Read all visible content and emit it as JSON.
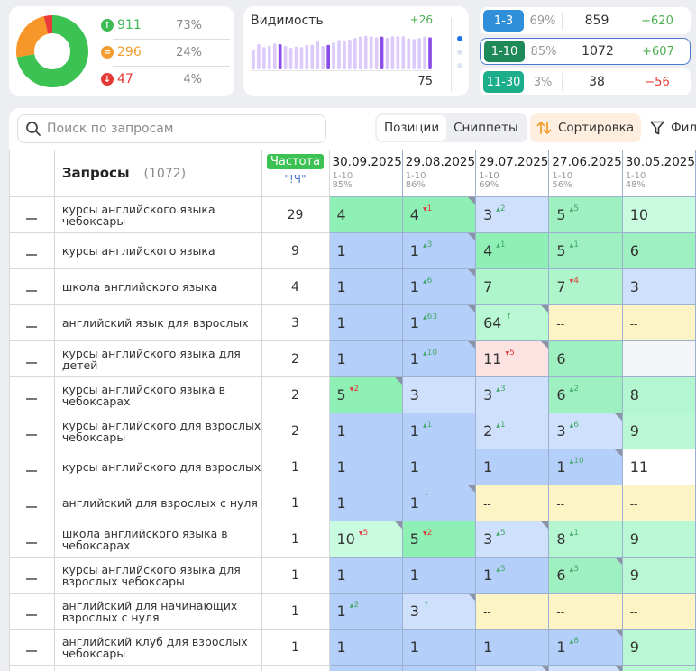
{
  "summary": {
    "up": {
      "count": "911",
      "pct": "73%",
      "color": "#3cba54"
    },
    "same": {
      "count": "296",
      "pct": "24%",
      "color": "#f39c2f"
    },
    "down": {
      "count": "47",
      "pct": "4%",
      "color": "#e53935"
    },
    "donut": [
      {
        "label": "up",
        "value": 73,
        "color": "#3cc153"
      },
      {
        "label": "same",
        "value": 24,
        "color": "#f7972a"
      },
      {
        "label": "down",
        "value": 4,
        "color": "#ec3b3b"
      }
    ]
  },
  "visibility": {
    "title": "Видимость",
    "delta": "+26",
    "value": "75",
    "bars": [
      {
        "v": 55,
        "h": false
      },
      {
        "v": 70,
        "h": false
      },
      {
        "v": 62,
        "h": false
      },
      {
        "v": 66,
        "h": false
      },
      {
        "v": 72,
        "h": false
      },
      {
        "v": 70,
        "h": true
      },
      {
        "v": 65,
        "h": false
      },
      {
        "v": 60,
        "h": false
      },
      {
        "v": 63,
        "h": false
      },
      {
        "v": 62,
        "h": false
      },
      {
        "v": 68,
        "h": false
      },
      {
        "v": 68,
        "h": false
      },
      {
        "v": 78,
        "h": false
      },
      {
        "v": 65,
        "h": false
      },
      {
        "v": 68,
        "h": true
      },
      {
        "v": 75,
        "h": false
      },
      {
        "v": 82,
        "h": false
      },
      {
        "v": 78,
        "h": false
      },
      {
        "v": 83,
        "h": false
      },
      {
        "v": 87,
        "h": false
      },
      {
        "v": 91,
        "h": false
      },
      {
        "v": 93,
        "h": false
      },
      {
        "v": 92,
        "h": false
      },
      {
        "v": 89,
        "h": false
      },
      {
        "v": 91,
        "h": true
      },
      {
        "v": 88,
        "h": false
      },
      {
        "v": 92,
        "h": false
      },
      {
        "v": 92,
        "h": false
      },
      {
        "v": 92,
        "h": false
      },
      {
        "v": 86,
        "h": false
      },
      {
        "v": 84,
        "h": false
      },
      {
        "v": 87,
        "h": false
      },
      {
        "v": 91,
        "h": false
      },
      {
        "v": 89,
        "h": true
      }
    ]
  },
  "ranges": [
    {
      "label": "1-3",
      "pct": "69%",
      "count": "859",
      "delta": "+620",
      "badge": "#2f8fd8",
      "positive": true
    },
    {
      "label": "1-10",
      "pct": "85%",
      "count": "1072",
      "delta": "+607",
      "badge": "#1e8a5a",
      "positive": true
    },
    {
      "label": "11-30",
      "pct": "3%",
      "count": "38",
      "delta": "−56",
      "badge": "#1cae8a",
      "positive": false
    }
  ],
  "toolbar": {
    "search_placeholder": "Поиск по запросам",
    "positions": "Позиции",
    "snippets": "Сниппеты",
    "sort": "Сортировка",
    "filter": "Фил"
  },
  "table": {
    "queries_title": "Запросы",
    "queries_count": "(1072)",
    "freq_label": "Частота",
    "freq_sub": "\"!Ч\"",
    "dates": [
      {
        "date": "30.09.2025",
        "range": "1-10",
        "pct": "85%"
      },
      {
        "date": "29.08.2025",
        "range": "1-10",
        "pct": "86%"
      },
      {
        "date": "29.07.2025",
        "range": "1-10",
        "pct": "69%"
      },
      {
        "date": "27.06.2025",
        "range": "1-10",
        "pct": "56%"
      },
      {
        "date": "30.05.2025",
        "range": "1-10",
        "pct": "48%"
      }
    ],
    "rows": [
      {
        "q": "курсы английского языка чебоксары",
        "f": "29",
        "cells": [
          {
            "v": "4",
            "bg": "#8ef0b5"
          },
          {
            "v": "4",
            "c": "1",
            "d": "down",
            "bg": "#8ef0b5",
            "k": true
          },
          {
            "v": "3",
            "c": "2",
            "d": "up",
            "bg": "#cfe0fc"
          },
          {
            "v": "5",
            "c": "5",
            "d": "up",
            "bg": "#9ef0c1"
          },
          {
            "v": "10",
            "bg": "#c9fbe0"
          }
        ]
      },
      {
        "q": "курсы английского языка",
        "f": "9",
        "cells": [
          {
            "v": "1",
            "bg": "#b3cffa"
          },
          {
            "v": "1",
            "c": "3",
            "d": "up",
            "bg": "#b3cffa",
            "k": true
          },
          {
            "v": "4",
            "c": "1",
            "d": "up",
            "bg": "#8ef0b5"
          },
          {
            "v": "5",
            "c": "1",
            "d": "up",
            "bg": "#9ef0c1"
          },
          {
            "v": "6",
            "bg": "#9ef0c1"
          }
        ]
      },
      {
        "q": "школа английского языка",
        "f": "4",
        "cells": [
          {
            "v": "1",
            "bg": "#b3cffa"
          },
          {
            "v": "1",
            "c": "6",
            "d": "up",
            "bg": "#b3cffa",
            "k": true
          },
          {
            "v": "7",
            "bg": "#aef5cb"
          },
          {
            "v": "7",
            "c": "4",
            "d": "down",
            "bg": "#aef5cb"
          },
          {
            "v": "3",
            "bg": "#cfe0fc"
          }
        ]
      },
      {
        "q": "английский язык для взрослых",
        "f": "3",
        "cells": [
          {
            "v": "1",
            "bg": "#b3cffa"
          },
          {
            "v": "1",
            "c": "63",
            "d": "up",
            "bg": "#b3cffa",
            "k": true
          },
          {
            "v": "64",
            "c": "↑",
            "d": "up",
            "bg": "#b8f8d2",
            "k": true
          },
          {
            "v": "--",
            "bg": "#fdf4c5",
            "s": true
          },
          {
            "v": "--",
            "bg": "#fdf4c5",
            "s": true
          }
        ]
      },
      {
        "q": "курсы английского языка для детей",
        "f": "2",
        "cells": [
          {
            "v": "1",
            "bg": "#b3cffa"
          },
          {
            "v": "1",
            "c": "10",
            "d": "up",
            "bg": "#b3cffa",
            "k": true
          },
          {
            "v": "11",
            "c": "5",
            "d": "down",
            "bg": "#fde2e2",
            "k": true
          },
          {
            "v": "6",
            "bg": "#9ef0c1"
          },
          {
            "v": "",
            "bg": "#f4f5f8"
          }
        ]
      },
      {
        "q": "курсы английского языка в чебоксарах",
        "f": "2",
        "cells": [
          {
            "v": "5",
            "c": "2",
            "d": "down",
            "bg": "#8ef0b5",
            "k": true
          },
          {
            "v": "3",
            "bg": "#cfe0fc"
          },
          {
            "v": "3",
            "c": "3",
            "d": "up",
            "bg": "#cfe0fc"
          },
          {
            "v": "6",
            "c": "2",
            "d": "up",
            "bg": "#9ef0c1"
          },
          {
            "v": "8",
            "bg": "#b3f6d0"
          }
        ]
      },
      {
        "q": "курсы английского для взрослых чебоксары",
        "f": "2",
        "cells": [
          {
            "v": "1",
            "bg": "#b3cffa"
          },
          {
            "v": "1",
            "c": "1",
            "d": "up",
            "bg": "#b3cffa"
          },
          {
            "v": "2",
            "c": "1",
            "d": "up",
            "bg": "#cfe0fc"
          },
          {
            "v": "3",
            "c": "6",
            "d": "up",
            "bg": "#cfe0fc",
            "k": true
          },
          {
            "v": "9",
            "bg": "#b8f8d2"
          }
        ]
      },
      {
        "q": "курсы английского для взрослых",
        "f": "1",
        "cells": [
          {
            "v": "1",
            "bg": "#b3cffa"
          },
          {
            "v": "1",
            "bg": "#b3cffa"
          },
          {
            "v": "1",
            "bg": "#b3cffa"
          },
          {
            "v": "1",
            "c": "10",
            "d": "up",
            "bg": "#b3cffa",
            "k": true
          },
          {
            "v": "11",
            "bg": "#ffffff"
          }
        ]
      },
      {
        "q": "английский для взрослых с нуля",
        "f": "1",
        "cells": [
          {
            "v": "1",
            "bg": "#b3cffa"
          },
          {
            "v": "1",
            "c": "↑",
            "d": "up",
            "bg": "#b3cffa",
            "k": true
          },
          {
            "v": "--",
            "bg": "#fdf4c5",
            "s": true
          },
          {
            "v": "--",
            "bg": "#fdf4c5",
            "s": true
          },
          {
            "v": "--",
            "bg": "#fdf4c5",
            "s": true
          }
        ]
      },
      {
        "q": "школа английского языка в чебоксарах",
        "f": "1",
        "cells": [
          {
            "v": "10",
            "c": "5",
            "d": "down",
            "bg": "#c9fbe0",
            "k": true
          },
          {
            "v": "5",
            "c": "2",
            "d": "down",
            "bg": "#8ef0b5"
          },
          {
            "v": "3",
            "c": "5",
            "d": "up",
            "bg": "#cfe0fc",
            "k": true
          },
          {
            "v": "8",
            "c": "1",
            "d": "up",
            "bg": "#b3f6d0"
          },
          {
            "v": "9",
            "bg": "#b8f8d2"
          }
        ]
      },
      {
        "q": "курсы английского языка для взрослых чебоксары",
        "f": "1",
        "cells": [
          {
            "v": "1",
            "bg": "#b3cffa"
          },
          {
            "v": "1",
            "bg": "#b3cffa"
          },
          {
            "v": "1",
            "c": "5",
            "d": "up",
            "bg": "#b3cffa"
          },
          {
            "v": "6",
            "c": "3",
            "d": "up",
            "bg": "#9ef0c1",
            "k": true
          },
          {
            "v": "9",
            "bg": "#b8f8d2"
          }
        ]
      },
      {
        "q": "английский для начинающих взрослых с нуля",
        "f": "1",
        "cells": [
          {
            "v": "1",
            "c": "2",
            "d": "up",
            "bg": "#b3cffa"
          },
          {
            "v": "3",
            "c": "↑",
            "d": "up",
            "bg": "#cfe0fc",
            "k": true
          },
          {
            "v": "--",
            "bg": "#fdf4c5",
            "s": true
          },
          {
            "v": "--",
            "bg": "#fdf4c5",
            "s": true
          },
          {
            "v": "--",
            "bg": "#fdf4c5",
            "s": true
          }
        ]
      },
      {
        "q": "английский клуб для взрослых чебоксары",
        "f": "1",
        "cells": [
          {
            "v": "1",
            "bg": "#b3cffa"
          },
          {
            "v": "1",
            "bg": "#b3cffa"
          },
          {
            "v": "1",
            "bg": "#b3cffa"
          },
          {
            "v": "1",
            "c": "8",
            "d": "up",
            "bg": "#b3cffa",
            "k": true
          },
          {
            "v": "9",
            "bg": "#b8f8d2"
          }
        ]
      },
      {
        "q": "",
        "f": "",
        "cells": [
          {
            "v": "",
            "bg": "#b3cffa"
          },
          {
            "v": "",
            "bg": "#b3cffa"
          },
          {
            "v": "",
            "bg": "#cfe0fc",
            "k": true
          },
          {
            "v": "",
            "bg": "#cfe0fc",
            "k": true
          },
          {
            "v": "",
            "bg": "#b8f8d2"
          }
        ]
      }
    ]
  }
}
